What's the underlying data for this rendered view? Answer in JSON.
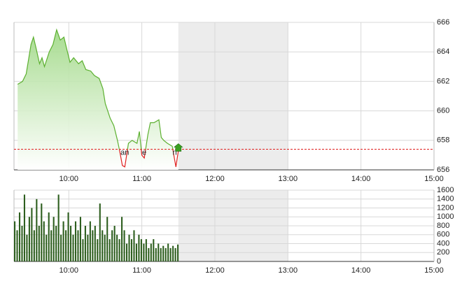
{
  "chart_data": [
    {
      "type": "line",
      "x": [
        558,
        562,
        565,
        569,
        571,
        573,
        576,
        578,
        580,
        584,
        587,
        590,
        593,
        596,
        598,
        601,
        604,
        608,
        611,
        614,
        618,
        621,
        625,
        628,
        630,
        634,
        637,
        640,
        642,
        644,
        646,
        649,
        652,
        656,
        658,
        660,
        662,
        665,
        667,
        670,
        674,
        676,
        678,
        681,
        683,
        685,
        688,
        690
      ],
      "values": [
        661.8,
        662.0,
        662.5,
        664.5,
        665.0,
        664.3,
        663.2,
        663.6,
        663.0,
        664.0,
        664.5,
        665.5,
        664.8,
        665.0,
        664.3,
        663.3,
        663.6,
        663.2,
        663.4,
        662.8,
        662.7,
        662.4,
        662.2,
        661.5,
        660.5,
        659.5,
        659.0,
        658.0,
        657.2,
        656.3,
        656.2,
        657.8,
        658.0,
        657.8,
        658.6,
        657.0,
        656.8,
        658.4,
        659.2,
        659.2,
        659.4,
        658.2,
        658.0,
        657.8,
        657.7,
        657.6,
        656.2,
        657.3
      ],
      "color": "#5cb030",
      "below_color": "#e02020",
      "fill": "#d4f0c4",
      "reference_line": 657.4,
      "reference_color": "#e02020",
      "shaded_x": [
        690,
        780
      ],
      "annotations": [
        {
          "text": "an",
          "x": 646
        },
        {
          "text": "e",
          "x": 662
        },
        {
          "text": "n",
          "x": 687
        }
      ],
      "xlim": [
        555,
        900
      ],
      "xticks": [
        {
          "value": 600,
          "label": "10:00"
        },
        {
          "value": 660,
          "label": "11:00"
        },
        {
          "value": 720,
          "label": "12:00"
        },
        {
          "value": 780,
          "label": "13:00"
        },
        {
          "value": 840,
          "label": "14:00"
        },
        {
          "value": 900,
          "label": "15:00"
        }
      ],
      "ylim": [
        656,
        666
      ],
      "yticks": [
        656,
        658,
        660,
        662,
        664,
        666
      ],
      "grid": true
    },
    {
      "type": "bar",
      "x": [
        555,
        557,
        559,
        561,
        563,
        565,
        567,
        569,
        571,
        573,
        575,
        577,
        579,
        581,
        583,
        585,
        587,
        589,
        591,
        593,
        595,
        597,
        599,
        601,
        603,
        605,
        607,
        609,
        611,
        613,
        615,
        617,
        619,
        621,
        623,
        625,
        627,
        629,
        631,
        633,
        635,
        637,
        639,
        641,
        643,
        645,
        647,
        649,
        651,
        653,
        655,
        657,
        659,
        661,
        663,
        665,
        667,
        669,
        671,
        673,
        675,
        677,
        679,
        681,
        683,
        685,
        687,
        689
      ],
      "values": [
        900,
        700,
        1100,
        800,
        1500,
        600,
        1000,
        1200,
        700,
        1400,
        800,
        1300,
        900,
        600,
        1100,
        700,
        1000,
        800,
        1500,
        600,
        900,
        700,
        1100,
        800,
        600,
        900,
        700,
        1000,
        500,
        800,
        600,
        900,
        700,
        800,
        500,
        1300,
        700,
        600,
        1000,
        500,
        700,
        800,
        600,
        500,
        1000,
        700,
        400,
        600,
        500,
        700,
        400,
        600,
        500,
        400,
        500,
        300,
        400,
        500,
        300,
        400,
        300,
        350,
        300,
        400,
        300,
        350,
        300,
        380
      ],
      "color": "#2d5e1e",
      "shaded_x": [
        690,
        780
      ],
      "xlim": [
        555,
        900
      ],
      "xticks": [
        {
          "value": 600,
          "label": "10:00"
        },
        {
          "value": 660,
          "label": "11:00"
        },
        {
          "value": 720,
          "label": "12:00"
        },
        {
          "value": 780,
          "label": "13:00"
        },
        {
          "value": 840,
          "label": "14:00"
        },
        {
          "value": 900,
          "label": "15:00"
        }
      ],
      "ylim": [
        0,
        1600
      ],
      "yticks": [
        0,
        200,
        400,
        600,
        800,
        1000,
        1200,
        1400,
        1600
      ],
      "grid": true
    }
  ]
}
